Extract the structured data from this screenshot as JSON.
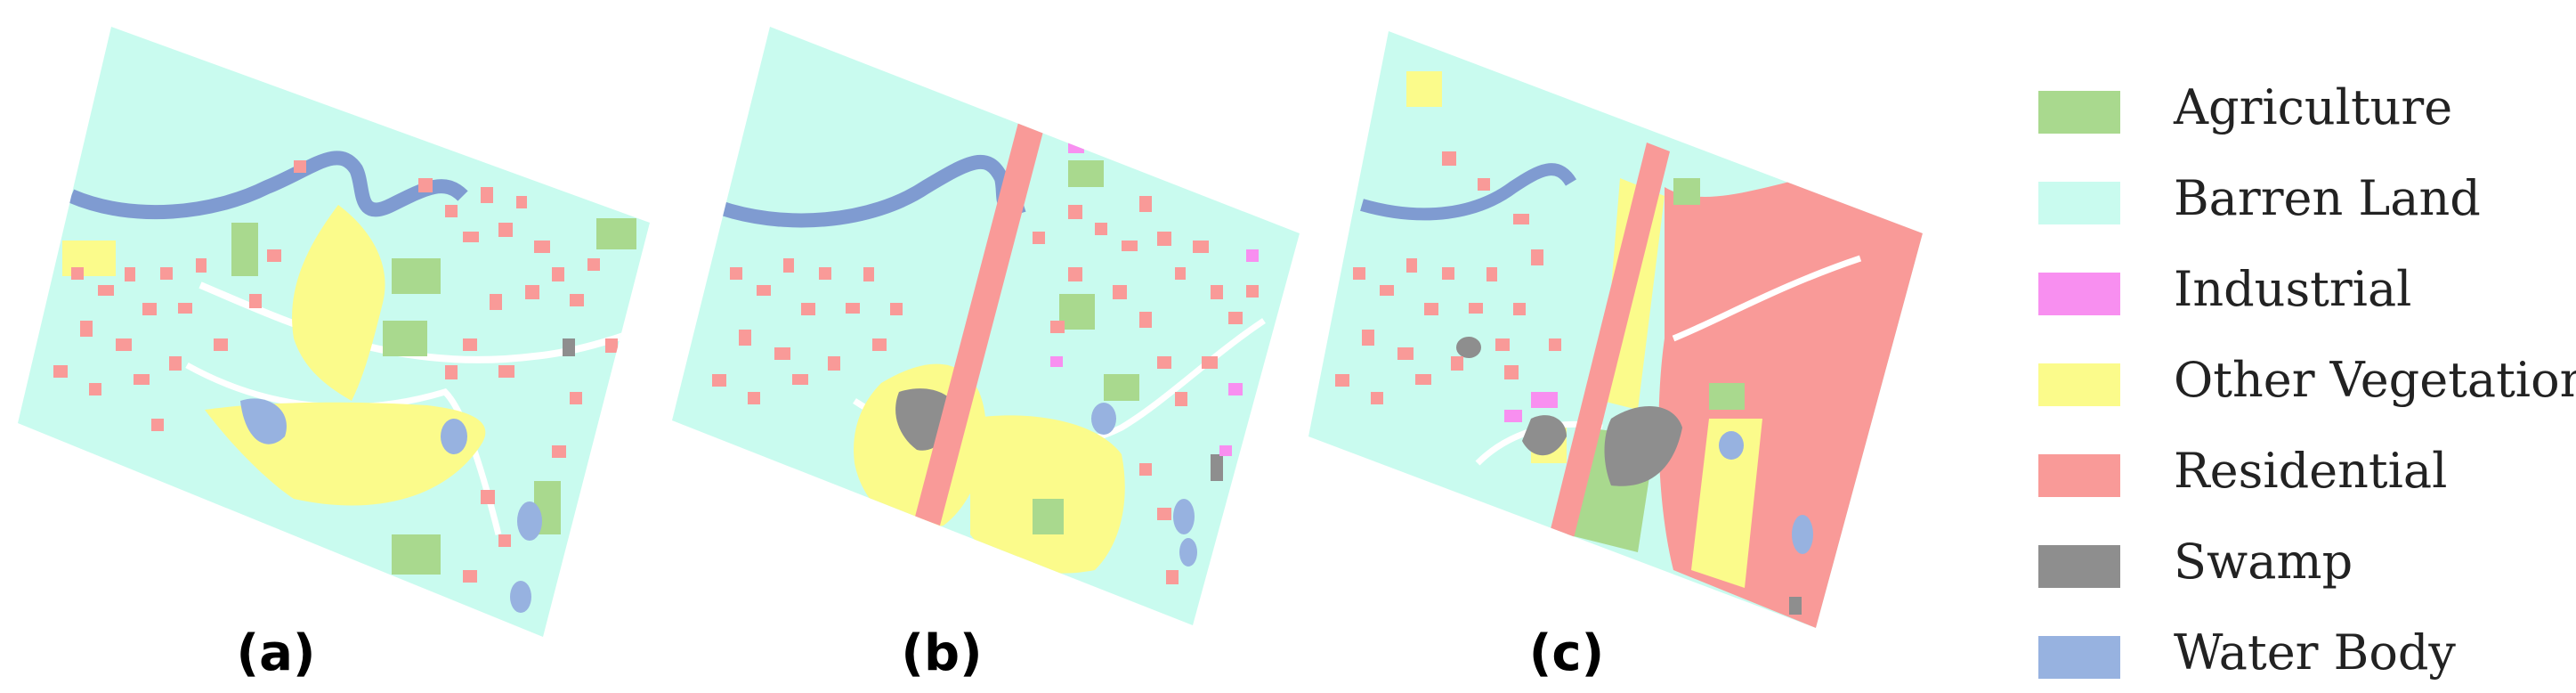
{
  "panels": [
    {
      "label": "(a)"
    },
    {
      "label": "(b)"
    },
    {
      "label": "(c)"
    }
  ],
  "legend": [
    {
      "label": "Agriculture",
      "color": "#a9d98e"
    },
    {
      "label": "Barren Land",
      "color": "#c9fbef"
    },
    {
      "label": "Industrial",
      "color": "#f88ff0"
    },
    {
      "label": "Other Vegetation",
      "color": "#fbfb8b"
    },
    {
      "label": "Residential",
      "color": "#f99a98"
    },
    {
      "label": "Swamp",
      "color": "#8e8e8e"
    },
    {
      "label": "Water Body",
      "color": "#97b2e0"
    }
  ],
  "colors": {
    "river": "#7f9bd1",
    "road": "#ffffff"
  }
}
